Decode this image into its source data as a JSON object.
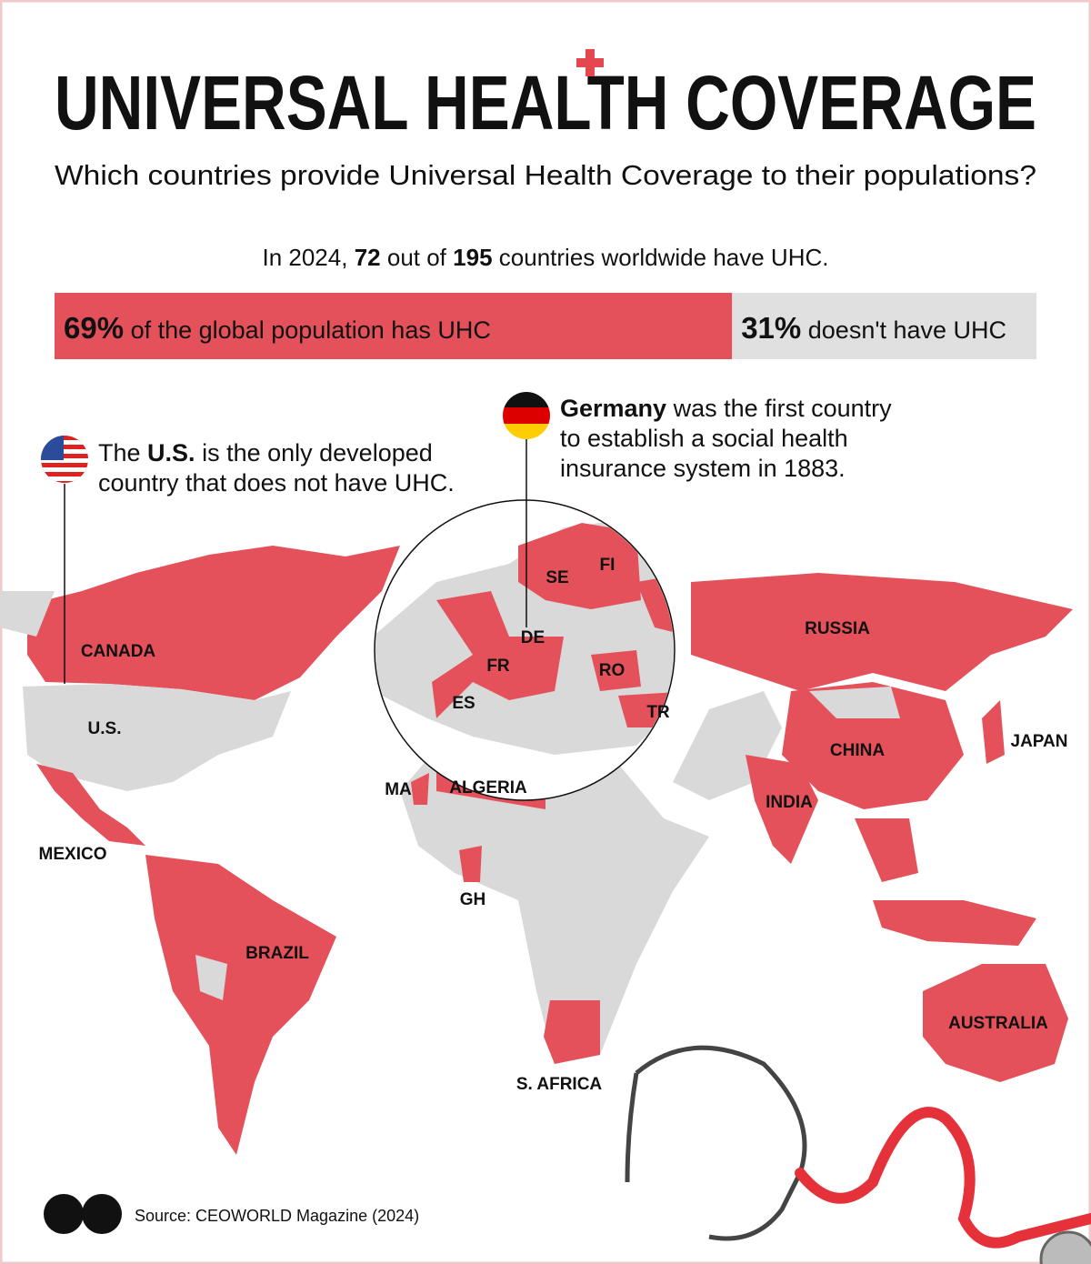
{
  "header": {
    "title": "UNIVERSAL HEALTH COVERAGE",
    "subtitle": "Which countries provide Universal Health Coverage to their populations?"
  },
  "stat": {
    "prefix": "In 2024,",
    "countries_with_uhc": 72,
    "middle": "out of",
    "total_countries": 195,
    "suffix": "countries worldwide have UHC."
  },
  "population_bar": [
    {
      "value": 69,
      "label": "69%",
      "text": "of the global population has UHC"
    },
    {
      "value": 31,
      "label": "31%",
      "text": "doesn't have UHC"
    }
  ],
  "notes": {
    "us": {
      "pre": "The",
      "bold": "U.S.",
      "line1": "is the only developed",
      "line2": "country that does not have UHC."
    },
    "germany": {
      "bold": "Germany",
      "line1": "was the first country",
      "line2": "to establish a social health",
      "line3": "insurance system in 1883."
    }
  },
  "map_labels": [
    "CANADA",
    "U.S.",
    "MEXICO",
    "BRAZIL",
    "MA",
    "ALGERIA",
    "GH",
    "S. AFRICA",
    "RUSSIA",
    "CHINA",
    "INDIA",
    "JAPAN",
    "AUSTRALIA",
    "SE",
    "FI",
    "DE",
    "FR",
    "ES",
    "RO",
    "TR"
  ],
  "source": "Source: CEOWORLD Magazine (2024)"
}
